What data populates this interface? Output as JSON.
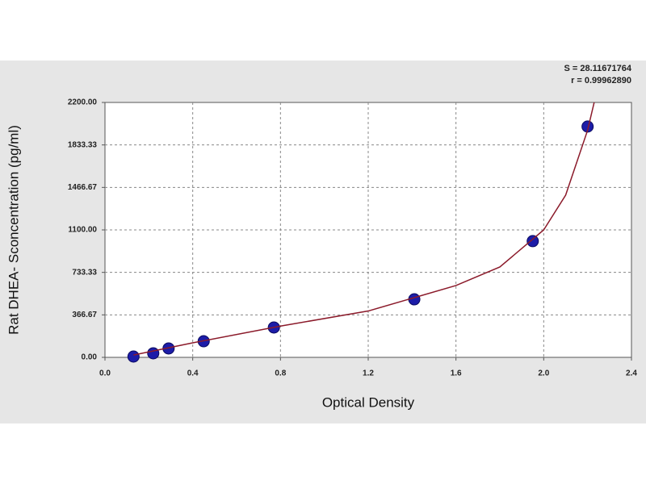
{
  "chart_data": {
    "type": "scatter",
    "x_label": "Optical Density",
    "y_label": "Rat DHEA- Sconcentration (pg/ml)",
    "annotations": [
      "S = 28.11671764",
      "r = 0.99962890"
    ],
    "xlim": [
      0,
      2.4
    ],
    "xticks": [
      {
        "value": 0,
        "label": "0.0"
      },
      0.4,
      0.8,
      1.2,
      1.6,
      {
        "value": 2,
        "label": "2.0"
      },
      2.4
    ],
    "ylim": [
      0,
      2200
    ],
    "yticks": [
      {
        "value": 0,
        "label": "0.00"
      },
      366.67,
      733.33,
      {
        "value": 1100,
        "label": "1100.00"
      },
      1466.67,
      1833.33,
      {
        "value": 2200,
        "label": "2200.00"
      }
    ],
    "grid": true,
    "series": [
      {
        "x": [
          0.13,
          0.22,
          0.29,
          0.45,
          0.77,
          1.41,
          1.95,
          2.2
        ],
        "values": [
          7,
          35,
          77,
          139,
          258,
          501,
          1003,
          1992
        ],
        "color": "#1c1ca8",
        "mode": "markers"
      },
      {
        "x": [
          0.13,
          0.4,
          0.8,
          1.2,
          1.6,
          1.8,
          2.0,
          2.1,
          2.2,
          2.23
        ],
        "values": [
          20,
          125,
          270,
          400,
          620,
          780,
          1100,
          1400,
          1960,
          2200
        ],
        "color": "#8b1a2a",
        "mode": "line"
      }
    ]
  }
}
